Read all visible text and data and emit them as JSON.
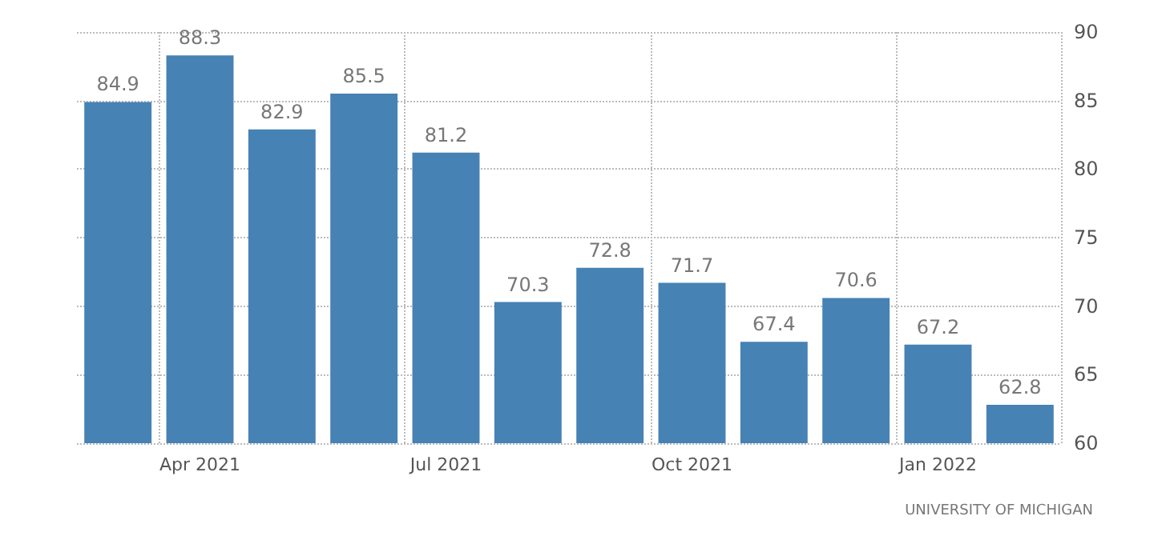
{
  "chart_data": {
    "type": "bar",
    "categories": [
      null,
      "Apr 2021",
      null,
      null,
      "Jul 2021",
      null,
      null,
      "Oct 2021",
      null,
      null,
      "Jan 2022",
      null
    ],
    "values": [
      84.9,
      88.3,
      82.9,
      85.5,
      81.2,
      70.3,
      72.8,
      71.7,
      67.4,
      70.6,
      67.2,
      62.8
    ],
    "color": "#4682b4",
    "ylim": [
      60,
      90
    ],
    "yticks": [
      60,
      65,
      70,
      75,
      80,
      85,
      90
    ],
    "grid": true,
    "data_labels": true,
    "annotations": [
      "UNIVERSITY OF MICHIGAN"
    ]
  }
}
